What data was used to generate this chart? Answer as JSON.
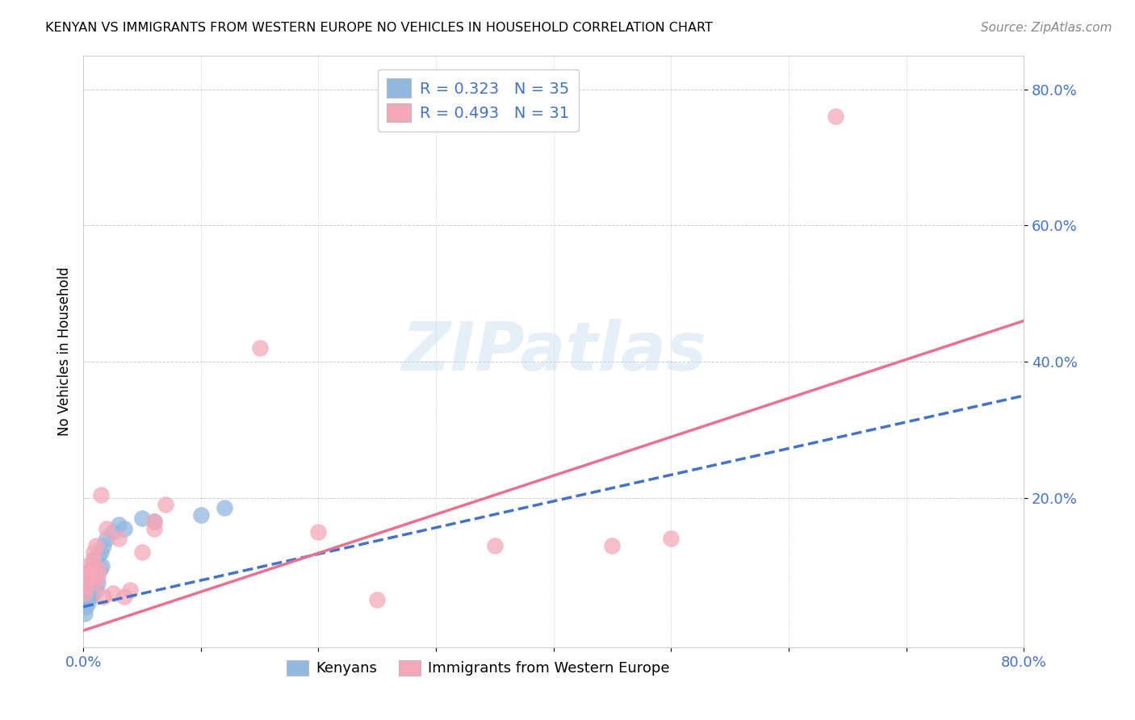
{
  "title": "KENYAN VS IMMIGRANTS FROM WESTERN EUROPE NO VEHICLES IN HOUSEHOLD CORRELATION CHART",
  "source": "Source: ZipAtlas.com",
  "ylabel": "No Vehicles in Household",
  "xlabel": "",
  "xlim": [
    0.0,
    0.8
  ],
  "ylim": [
    -0.02,
    0.85
  ],
  "xticks": [
    0.0,
    0.1,
    0.2,
    0.3,
    0.4,
    0.5,
    0.6,
    0.7,
    0.8
  ],
  "yticks": [
    0.2,
    0.4,
    0.6,
    0.8
  ],
  "xticklabels_show": [
    "0.0%",
    "80.0%"
  ],
  "xticklabels_pos": [
    0.0,
    0.8
  ],
  "yticklabels": [
    "20.0%",
    "40.0%",
    "60.0%",
    "80.0%"
  ],
  "legend1_label": "R = 0.323   N = 35",
  "legend2_label": "R = 0.493   N = 31",
  "legend3_label": "Kenyans",
  "legend4_label": "Immigrants from Western Europe",
  "kenyan_color": "#93b8e0",
  "western_europe_color": "#f4a7b9",
  "kenyan_line_color": "#4472c4",
  "western_europe_line_color": "#e87090",
  "background_color": "#ffffff",
  "grid_color": "#cccccc",
  "watermark_text": "ZIPatlas",
  "kenyan_x": [
    0.001,
    0.002,
    0.003,
    0.003,
    0.004,
    0.004,
    0.005,
    0.005,
    0.005,
    0.006,
    0.006,
    0.007,
    0.007,
    0.008,
    0.008,
    0.009,
    0.009,
    0.01,
    0.01,
    0.011,
    0.011,
    0.012,
    0.013,
    0.014,
    0.015,
    0.016,
    0.017,
    0.02,
    0.025,
    0.03,
    0.035,
    0.05,
    0.06,
    0.1,
    0.12
  ],
  "kenyan_y": [
    0.03,
    0.04,
    0.05,
    0.06,
    0.045,
    0.065,
    0.07,
    0.08,
    0.09,
    0.055,
    0.075,
    0.085,
    0.095,
    0.06,
    0.1,
    0.07,
    0.105,
    0.08,
    0.11,
    0.065,
    0.09,
    0.075,
    0.115,
    0.095,
    0.12,
    0.1,
    0.13,
    0.14,
    0.15,
    0.16,
    0.155,
    0.17,
    0.165,
    0.175,
    0.185
  ],
  "western_europe_x": [
    0.001,
    0.002,
    0.003,
    0.004,
    0.005,
    0.006,
    0.007,
    0.008,
    0.009,
    0.01,
    0.011,
    0.012,
    0.013,
    0.015,
    0.017,
    0.02,
    0.025,
    0.03,
    0.035,
    0.04,
    0.05,
    0.06,
    0.06,
    0.07,
    0.15,
    0.2,
    0.25,
    0.35,
    0.45,
    0.5,
    0.64
  ],
  "western_europe_y": [
    0.06,
    0.07,
    0.08,
    0.1,
    0.085,
    0.09,
    0.095,
    0.11,
    0.12,
    0.075,
    0.13,
    0.085,
    0.095,
    0.205,
    0.055,
    0.155,
    0.06,
    0.14,
    0.055,
    0.065,
    0.12,
    0.155,
    0.165,
    0.19,
    0.42,
    0.15,
    0.05,
    0.13,
    0.13,
    0.14,
    0.76
  ],
  "pink_line_x0": 0.0,
  "pink_line_y0": 0.005,
  "pink_line_x1": 0.8,
  "pink_line_y1": 0.46,
  "blue_line_x0": 0.0,
  "blue_line_y0": 0.04,
  "blue_line_x1": 0.8,
  "blue_line_y1": 0.35
}
